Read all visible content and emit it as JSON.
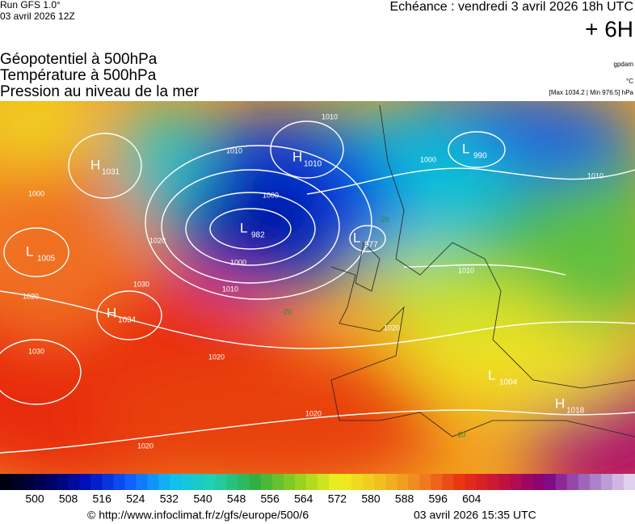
{
  "header": {
    "run": "Run GFS 1.0°",
    "run_date": "03 avril 2026 12Z",
    "echeance": "Echéance : vendredi 3 avril 2026 18h UTC",
    "lead": "+ 6H",
    "titles": [
      "Géopotentiel à 500hPa",
      "Température à 500hPa",
      "Pression au niveau de la mer"
    ],
    "unit_geo": "gpdam",
    "unit_temp": "°C",
    "pressure_range": "[Max 1034.2 | Min 976.5] hPa"
  },
  "map": {
    "centers": [
      {
        "letter": "H",
        "value": "1031"
      },
      {
        "letter": "H",
        "value": "1010"
      },
      {
        "letter": "L",
        "value": "982"
      },
      {
        "letter": "L",
        "value": "977"
      },
      {
        "letter": "L",
        "value": "990"
      },
      {
        "letter": "L",
        "value": "1005"
      },
      {
        "letter": "H",
        "value": "1034"
      },
      {
        "letter": "L",
        "value": "1004"
      },
      {
        "letter": "H",
        "value": "1018"
      }
    ],
    "isobar_labels": [
      "1010",
      "1010",
      "1000",
      "1000",
      "1000",
      "1010",
      "1020",
      "1030",
      "1020",
      "1030",
      "1020",
      "1020",
      "1020",
      "1020",
      "1010",
      "1010",
      "1000"
    ],
    "temperature_labels": [
      "-20",
      "-20",
      "-20"
    ]
  },
  "colorbar": {
    "labels": [
      "500",
      "508",
      "516",
      "524",
      "532",
      "540",
      "548",
      "556",
      "564",
      "572",
      "580",
      "588",
      "596",
      "604"
    ]
  },
  "footer": {
    "url": "© http://www.infoclimat.fr/z/gfs/europe/500/6",
    "generated": "03 avril 2026 15:35 UTC"
  }
}
